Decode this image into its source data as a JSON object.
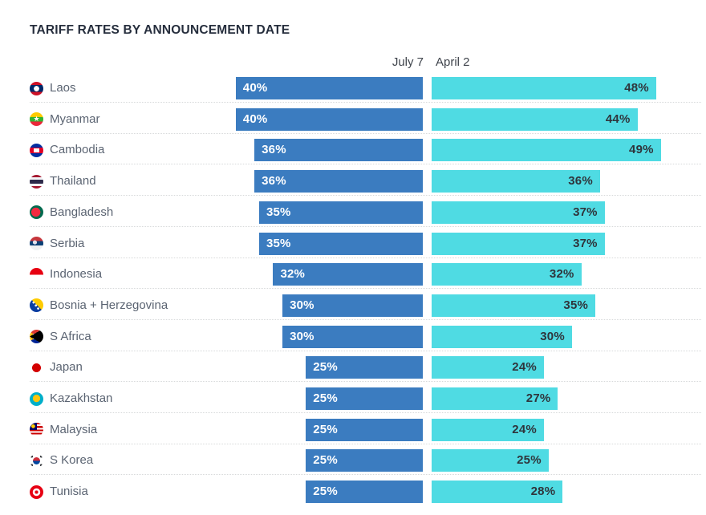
{
  "title": "TARIFF RATES BY ANNOUNCEMENT DATE",
  "columns": {
    "july_label": "July 7",
    "april_label": "April 2"
  },
  "colors": {
    "july_bar": "#3b7cc0",
    "april_bar": "#4fdbe3",
    "july_value_text": "#ffffff",
    "april_value_text": "#2f353c",
    "title_text": "#262e3d",
    "header_text": "#3f444c",
    "country_label_text": "#5b6472",
    "separator": "#d7d9da"
  },
  "flag_icons": [
    "flag-laos-icon",
    "flag-myanmar-icon",
    "flag-cambodia-icon",
    "flag-thailand-icon",
    "flag-bangladesh-icon",
    "flag-serbia-icon",
    "flag-indonesia-icon",
    "flag-bosnia-icon",
    "flag-s-africa-icon",
    "flag-japan-icon",
    "flag-kazakhstan-icon",
    "flag-malaysia-icon",
    "flag-s-korea-icon",
    "flag-tunisia-icon"
  ],
  "chart_data": {
    "type": "bar",
    "orientation": "horizontal",
    "title": "TARIFF RATES BY ANNOUNCEMENT DATE",
    "categories": [
      "Laos",
      "Myanmar",
      "Cambodia",
      "Thailand",
      "Bangladesh",
      "Serbia",
      "Indonesia",
      "Bosnia + Herzegovina",
      "S Africa",
      "Japan",
      "Kazakhstan",
      "Malaysia",
      "S Korea",
      "Tunisia"
    ],
    "series": [
      {
        "name": "July 7",
        "values": [
          40,
          40,
          36,
          36,
          35,
          35,
          32,
          30,
          30,
          25,
          25,
          25,
          25,
          25
        ]
      },
      {
        "name": "April 2",
        "values": [
          48,
          44,
          49,
          36,
          37,
          37,
          32,
          35,
          30,
          24,
          27,
          24,
          25,
          28
        ]
      }
    ],
    "value_suffix": "%",
    "xlim": [
      0,
      50
    ],
    "grid": false,
    "legend_position": "top-as-column-headers",
    "layout": "july-bars-right-aligned, april-bars-left-aligned, value labels inside bars, dotted row separators"
  }
}
